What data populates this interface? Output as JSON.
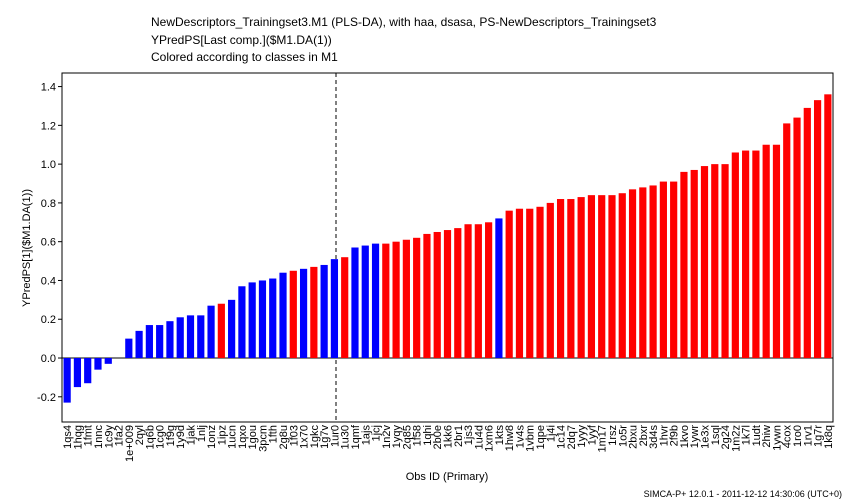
{
  "chart_data": {
    "type": "bar",
    "title": [
      "NewDescriptors_Trainingset3.M1 (PLS-DA), with haa, dsasa, PS-NewDescriptors_Trainingset3",
      "YPredPS[Last comp.]($M1.DA(1))",
      "Colored according to classes in M1"
    ],
    "ylabel": "YPredPS[1]($M1.DA(1))",
    "xlabel": "Obs ID (Primary)",
    "footer": "SIMCA-P+ 12.0.1 - 2011-12-12 14:30:06 (UTC+0)",
    "categories": [
      "1qs4",
      "1hqg",
      "1fmt",
      "1nnc",
      "1c9y",
      "1fa2",
      "1e+009",
      "2qyl",
      "1q6b",
      "1cg0",
      "1f9g",
      "1y9d",
      "1jak",
      "1nlj",
      "1onz",
      "1ipz",
      "1ucn",
      "1qxo",
      "1gou",
      "3pcm",
      "1fth",
      "2g8u",
      "1f03",
      "1x70",
      "1gkc",
      "1g7v",
      "1ur0",
      "1u30",
      "1qmf",
      "1ajs",
      "1jcj",
      "1n2v",
      "1yqy",
      "2q85",
      "1f58",
      "1qhi",
      "2b0e",
      "1kk6",
      "2br1",
      "1js3",
      "1u4d",
      "1xm6",
      "1kts",
      "1hw8",
      "1v4s",
      "1vbm",
      "1qpe",
      "1j4i",
      "1c14",
      "2dq7",
      "1yyy",
      "1yyf",
      "1m17",
      "1rsz",
      "1o5r",
      "2bxu",
      "2bxr",
      "3d4s",
      "1hvr",
      "2f9b",
      "1kvo",
      "1ywr",
      "1e3x",
      "1sql",
      "2g24",
      "1m2z",
      "1k7l",
      "1udt",
      "2hiw",
      "1ywn",
      "4cox",
      "1ro0",
      "1rv1",
      "1g7r",
      "1k8q"
    ],
    "values": [
      -0.23,
      -0.15,
      -0.13,
      -0.06,
      -0.03,
      0.0,
      0.1,
      0.14,
      0.17,
      0.17,
      0.19,
      0.21,
      0.22,
      0.22,
      0.27,
      0.28,
      0.3,
      0.37,
      0.39,
      0.4,
      0.41,
      0.44,
      0.45,
      0.46,
      0.47,
      0.48,
      0.51,
      0.52,
      0.57,
      0.58,
      0.59,
      0.59,
      0.6,
      0.61,
      0.62,
      0.64,
      0.65,
      0.66,
      0.67,
      0.69,
      0.69,
      0.7,
      0.72,
      0.76,
      0.77,
      0.77,
      0.78,
      0.8,
      0.82,
      0.82,
      0.83,
      0.84,
      0.84,
      0.84,
      0.85,
      0.87,
      0.88,
      0.89,
      0.91,
      0.91,
      0.96,
      0.97,
      0.99,
      1.0,
      1.0,
      1.06,
      1.07,
      1.07,
      1.1,
      1.1,
      1.21,
      1.24,
      1.29,
      1.33,
      1.36
    ],
    "colors": [
      "#0000ff",
      "#0000ff",
      "#0000ff",
      "#0000ff",
      "#0000ff",
      "#0000ff",
      "#0000ff",
      "#0000ff",
      "#0000ff",
      "#0000ff",
      "#0000ff",
      "#0000ff",
      "#0000ff",
      "#0000ff",
      "#0000ff",
      "#ff0000",
      "#0000ff",
      "#0000ff",
      "#0000ff",
      "#0000ff",
      "#0000ff",
      "#0000ff",
      "#ff0000",
      "#0000ff",
      "#ff0000",
      "#0000ff",
      "#0000ff",
      "#ff0000",
      "#0000ff",
      "#0000ff",
      "#0000ff",
      "#ff0000",
      "#ff0000",
      "#ff0000",
      "#ff0000",
      "#ff0000",
      "#ff0000",
      "#ff0000",
      "#ff0000",
      "#ff0000",
      "#ff0000",
      "#ff0000",
      "#0000ff",
      "#ff0000",
      "#ff0000",
      "#ff0000",
      "#ff0000",
      "#ff0000",
      "#ff0000",
      "#ff0000",
      "#ff0000",
      "#ff0000",
      "#ff0000",
      "#ff0000",
      "#ff0000",
      "#ff0000",
      "#ff0000",
      "#ff0000",
      "#ff0000",
      "#ff0000",
      "#ff0000",
      "#ff0000",
      "#ff0000",
      "#ff0000",
      "#ff0000",
      "#ff0000",
      "#ff0000",
      "#ff0000",
      "#ff0000",
      "#ff0000",
      "#ff0000",
      "#ff0000",
      "#ff0000",
      "#ff0000",
      "#ff0000"
    ],
    "ylim": [
      -0.33,
      1.47
    ],
    "yticks": [
      -0.2,
      {
        "value": 0,
        "label": "0.0"
      },
      0.2,
      0.4,
      0.6,
      0.8,
      {
        "value": 1,
        "label": "1.0"
      },
      1.2,
      1.4
    ]
  }
}
